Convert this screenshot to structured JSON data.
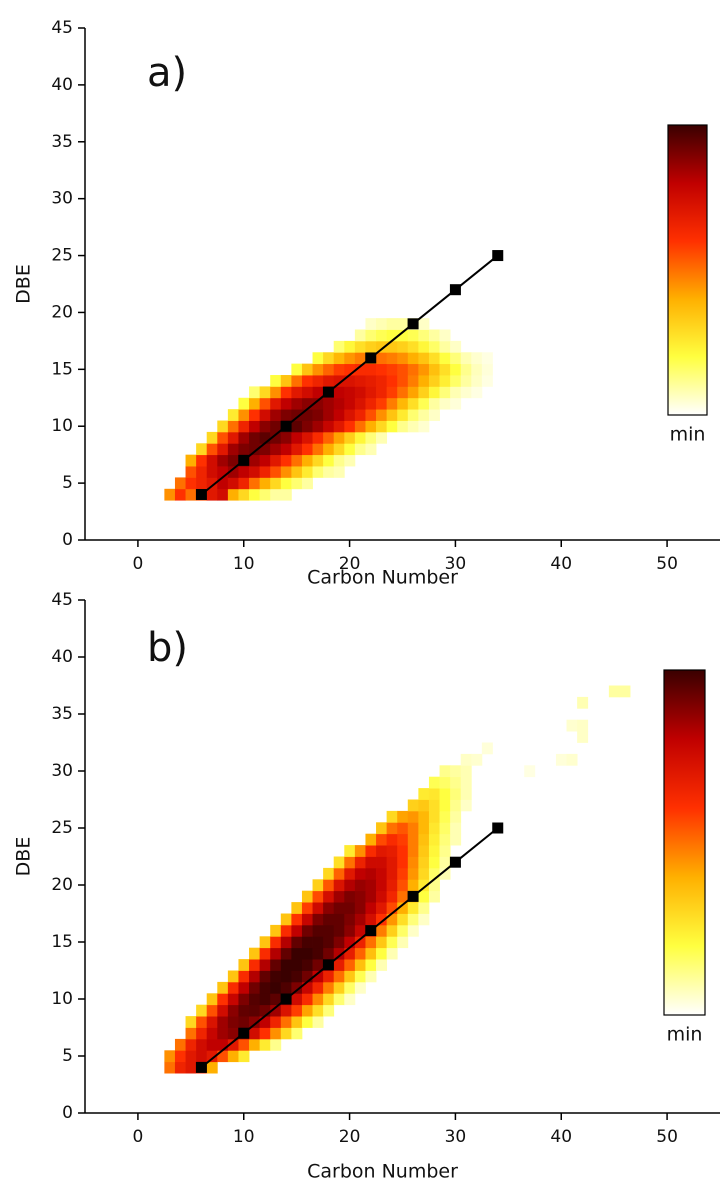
{
  "chart_data": [
    {
      "type": "heatmap",
      "panel_label": "a)",
      "xlabel": "Carbon Number",
      "ylabel": "DBE",
      "xlim": [
        -5,
        55
      ],
      "ylim": [
        0,
        45
      ],
      "xticks": [
        0,
        10,
        20,
        30,
        40,
        50
      ],
      "yticks": [
        0,
        5,
        10,
        15,
        20,
        25,
        30,
        35,
        40,
        45
      ],
      "zlim": [
        0,
        100
      ],
      "colormap": [
        "#ffffff",
        "#ffff40",
        "#ffb000",
        "#ff3000",
        "#c00000",
        "#3a0000"
      ],
      "colorbar_label": "min",
      "heatmap": [
        {
          "y": 4,
          "x0": 3,
          "values": [
            45,
            60,
            50,
            55,
            70,
            75,
            40,
            30,
            20,
            15,
            10,
            10
          ]
        },
        {
          "y": 5,
          "x0": 4,
          "values": [
            50,
            60,
            65,
            70,
            80,
            75,
            65,
            50,
            40,
            30,
            20,
            15,
            10
          ]
        },
        {
          "y": 6,
          "x0": 5,
          "values": [
            55,
            65,
            75,
            80,
            85,
            80,
            75,
            65,
            55,
            45,
            35,
            25,
            15,
            10,
            8
          ]
        },
        {
          "y": 7,
          "x0": 5,
          "values": [
            40,
            60,
            75,
            85,
            90,
            90,
            85,
            80,
            70,
            60,
            50,
            40,
            30,
            20,
            12,
            8
          ]
        },
        {
          "y": 8,
          "x0": 6,
          "values": [
            30,
            55,
            70,
            85,
            90,
            92,
            90,
            85,
            80,
            70,
            60,
            50,
            40,
            30,
            20,
            12,
            8
          ]
        },
        {
          "y": 9,
          "x0": 7,
          "values": [
            30,
            55,
            70,
            85,
            92,
            95,
            92,
            88,
            80,
            72,
            62,
            52,
            42,
            32,
            22,
            14,
            8
          ]
        },
        {
          "y": 10,
          "x0": 8,
          "values": [
            30,
            50,
            65,
            80,
            88,
            92,
            95,
            95,
            90,
            85,
            78,
            70,
            60,
            50,
            40,
            30,
            20,
            12,
            8,
            5
          ]
        },
        {
          "y": 11,
          "x0": 9,
          "values": [
            25,
            45,
            60,
            75,
            85,
            90,
            92,
            92,
            90,
            85,
            80,
            72,
            65,
            55,
            45,
            35,
            25,
            15,
            10,
            6
          ]
        },
        {
          "y": 12,
          "x0": 10,
          "values": [
            20,
            40,
            55,
            70,
            80,
            85,
            88,
            88,
            85,
            82,
            78,
            72,
            65,
            58,
            48,
            38,
            28,
            18,
            10,
            6,
            4
          ]
        },
        {
          "y": 13,
          "x0": 11,
          "values": [
            15,
            30,
            45,
            60,
            70,
            75,
            80,
            82,
            80,
            78,
            75,
            70,
            65,
            58,
            50,
            42,
            32,
            22,
            14,
            8,
            5,
            3
          ]
        },
        {
          "y": 14,
          "x0": 13,
          "values": [
            20,
            35,
            50,
            60,
            65,
            70,
            72,
            72,
            70,
            68,
            65,
            60,
            55,
            48,
            40,
            32,
            24,
            16,
            10,
            6,
            3
          ]
        },
        {
          "y": 15,
          "x0": 15,
          "values": [
            20,
            35,
            45,
            52,
            58,
            60,
            62,
            62,
            60,
            58,
            55,
            50,
            44,
            36,
            28,
            20,
            12,
            7,
            4
          ]
        },
        {
          "y": 16,
          "x0": 17,
          "values": [
            20,
            30,
            38,
            44,
            48,
            50,
            50,
            48,
            45,
            40,
            35,
            28,
            20,
            14,
            8,
            5,
            3
          ]
        },
        {
          "y": 17,
          "x0": 19,
          "values": [
            15,
            22,
            28,
            32,
            34,
            34,
            32,
            28,
            22,
            16,
            10,
            6
          ]
        },
        {
          "y": 18,
          "x0": 21,
          "values": [
            10,
            15,
            18,
            20,
            20,
            18,
            14,
            10,
            6
          ]
        },
        {
          "y": 19,
          "x0": 22,
          "values": [
            6,
            8,
            10,
            10,
            8,
            6
          ]
        }
      ],
      "series": [
        {
          "color": "#000000",
          "x": [
            6,
            10,
            14,
            18,
            22,
            26,
            30,
            34
          ],
          "values": [
            4,
            7,
            10,
            13,
            16,
            19,
            22,
            25
          ]
        }
      ]
    },
    {
      "type": "heatmap",
      "panel_label": "b)",
      "xlabel": "Carbon Number",
      "ylabel": "DBE",
      "xlim": [
        -5,
        55
      ],
      "ylim": [
        0,
        45
      ],
      "xticks": [
        0,
        10,
        20,
        30,
        40,
        50
      ],
      "yticks": [
        0,
        5,
        10,
        15,
        20,
        25,
        30,
        35,
        40,
        45
      ],
      "zlim": [
        0,
        100
      ],
      "colormap": [
        "#ffffff",
        "#ffff40",
        "#ffb000",
        "#ff3000",
        "#c00000",
        "#3a0000"
      ],
      "colorbar_label": "min",
      "heatmap": [
        {
          "y": 4,
          "x0": 3,
          "values": [
            50,
            65,
            70,
            60,
            40
          ]
        },
        {
          "y": 5,
          "x0": 3,
          "values": [
            45,
            60,
            70,
            75,
            70,
            55,
            40,
            25
          ]
        },
        {
          "y": 6,
          "x0": 4,
          "values": [
            50,
            65,
            75,
            80,
            80,
            70,
            55,
            40,
            25,
            12
          ]
        },
        {
          "y": 7,
          "x0": 5,
          "values": [
            50,
            65,
            78,
            85,
            88,
            85,
            75,
            60,
            45,
            30,
            15
          ]
        },
        {
          "y": 8,
          "x0": 5,
          "values": [
            30,
            55,
            72,
            85,
            90,
            92,
            88,
            80,
            65,
            50,
            35,
            20,
            10
          ]
        },
        {
          "y": 9,
          "x0": 6,
          "values": [
            30,
            55,
            75,
            88,
            94,
            95,
            92,
            85,
            72,
            58,
            42,
            28,
            14
          ]
        },
        {
          "y": 10,
          "x0": 7,
          "values": [
            35,
            60,
            78,
            90,
            96,
            98,
            95,
            88,
            76,
            62,
            46,
            30,
            15,
            6
          ]
        },
        {
          "y": 11,
          "x0": 8,
          "values": [
            35,
            62,
            80,
            92,
            98,
            100,
            97,
            90,
            78,
            64,
            48,
            32,
            16,
            6
          ]
        },
        {
          "y": 12,
          "x0": 9,
          "values": [
            35,
            62,
            82,
            94,
            99,
            100,
            98,
            92,
            80,
            66,
            50,
            34,
            18,
            8
          ]
        },
        {
          "y": 13,
          "x0": 10,
          "values": [
            35,
            62,
            82,
            94,
            100,
            100,
            98,
            92,
            82,
            68,
            52,
            36,
            20,
            8
          ]
        },
        {
          "y": 14,
          "x0": 11,
          "values": [
            35,
            62,
            82,
            94,
            100,
            100,
            98,
            92,
            82,
            68,
            52,
            36,
            20,
            8
          ]
        },
        {
          "y": 15,
          "x0": 12,
          "values": [
            35,
            62,
            82,
            94,
            98,
            98,
            96,
            90,
            80,
            66,
            50,
            34,
            18,
            8
          ]
        },
        {
          "y": 16,
          "x0": 13,
          "values": [
            35,
            62,
            80,
            92,
            96,
            96,
            94,
            88,
            78,
            64,
            48,
            32,
            16,
            6
          ]
        },
        {
          "y": 17,
          "x0": 14,
          "values": [
            35,
            60,
            78,
            90,
            94,
            94,
            90,
            84,
            74,
            60,
            44,
            28,
            14,
            6
          ]
        },
        {
          "y": 18,
          "x0": 15,
          "values": [
            35,
            58,
            76,
            88,
            92,
            92,
            88,
            80,
            70,
            56,
            40,
            25,
            12
          ]
        },
        {
          "y": 19,
          "x0": 16,
          "values": [
            35,
            56,
            74,
            85,
            90,
            88,
            84,
            76,
            64,
            50,
            35,
            20,
            10
          ]
        },
        {
          "y": 20,
          "x0": 17,
          "values": [
            32,
            54,
            72,
            82,
            86,
            84,
            78,
            68,
            55,
            40,
            25,
            12
          ]
        },
        {
          "y": 21,
          "x0": 18,
          "values": [
            30,
            52,
            70,
            80,
            82,
            78,
            70,
            58,
            44,
            30,
            16,
            8
          ]
        },
        {
          "y": 22,
          "x0": 19,
          "values": [
            28,
            50,
            66,
            76,
            76,
            70,
            60,
            46,
            32,
            20,
            10
          ]
        },
        {
          "y": 23,
          "x0": 20,
          "values": [
            25,
            45,
            62,
            70,
            68,
            60,
            48,
            34,
            22,
            12
          ]
        },
        {
          "y": 24,
          "x0": 22,
          "values": [
            40,
            56,
            62,
            58,
            48,
            36,
            24,
            14,
            8
          ]
        },
        {
          "y": 25,
          "x0": 23,
          "values": [
            35,
            50,
            54,
            48,
            38,
            26,
            16,
            8
          ]
        },
        {
          "y": 26,
          "x0": 24,
          "values": [
            30,
            42,
            44,
            38,
            28,
            18,
            10
          ]
        },
        {
          "y": 27,
          "x0": 26,
          "values": [
            32,
            34,
            28,
            20,
            12,
            6
          ]
        },
        {
          "y": 28,
          "x0": 27,
          "values": [
            25,
            26,
            20,
            14,
            8
          ]
        },
        {
          "y": 29,
          "x0": 28,
          "values": [
            18,
            16,
            12,
            8
          ]
        },
        {
          "y": 30,
          "x0": 29,
          "values": [
            12,
            10,
            8
          ]
        },
        {
          "y": 31,
          "x0": 31,
          "values": [
            6,
            5
          ]
        },
        {
          "y": 32,
          "x0": 33,
          "values": [
            4
          ]
        },
        {
          "y": 30,
          "x0": 37,
          "values": [
            3
          ]
        },
        {
          "y": 31,
          "x0": 40,
          "values": [
            4,
            5
          ]
        },
        {
          "y": 33,
          "x0": 42,
          "values": [
            6
          ]
        },
        {
          "y": 34,
          "x0": 41,
          "values": [
            5,
            6
          ]
        },
        {
          "y": 36,
          "x0": 42,
          "values": [
            8
          ]
        },
        {
          "y": 37,
          "x0": 45,
          "values": [
            10,
            10
          ]
        }
      ],
      "series": [
        {
          "color": "#000000",
          "x": [
            6,
            10,
            14,
            18,
            22,
            26,
            30,
            34
          ],
          "values": [
            4,
            7,
            10,
            13,
            16,
            19,
            22,
            25
          ]
        }
      ]
    }
  ]
}
